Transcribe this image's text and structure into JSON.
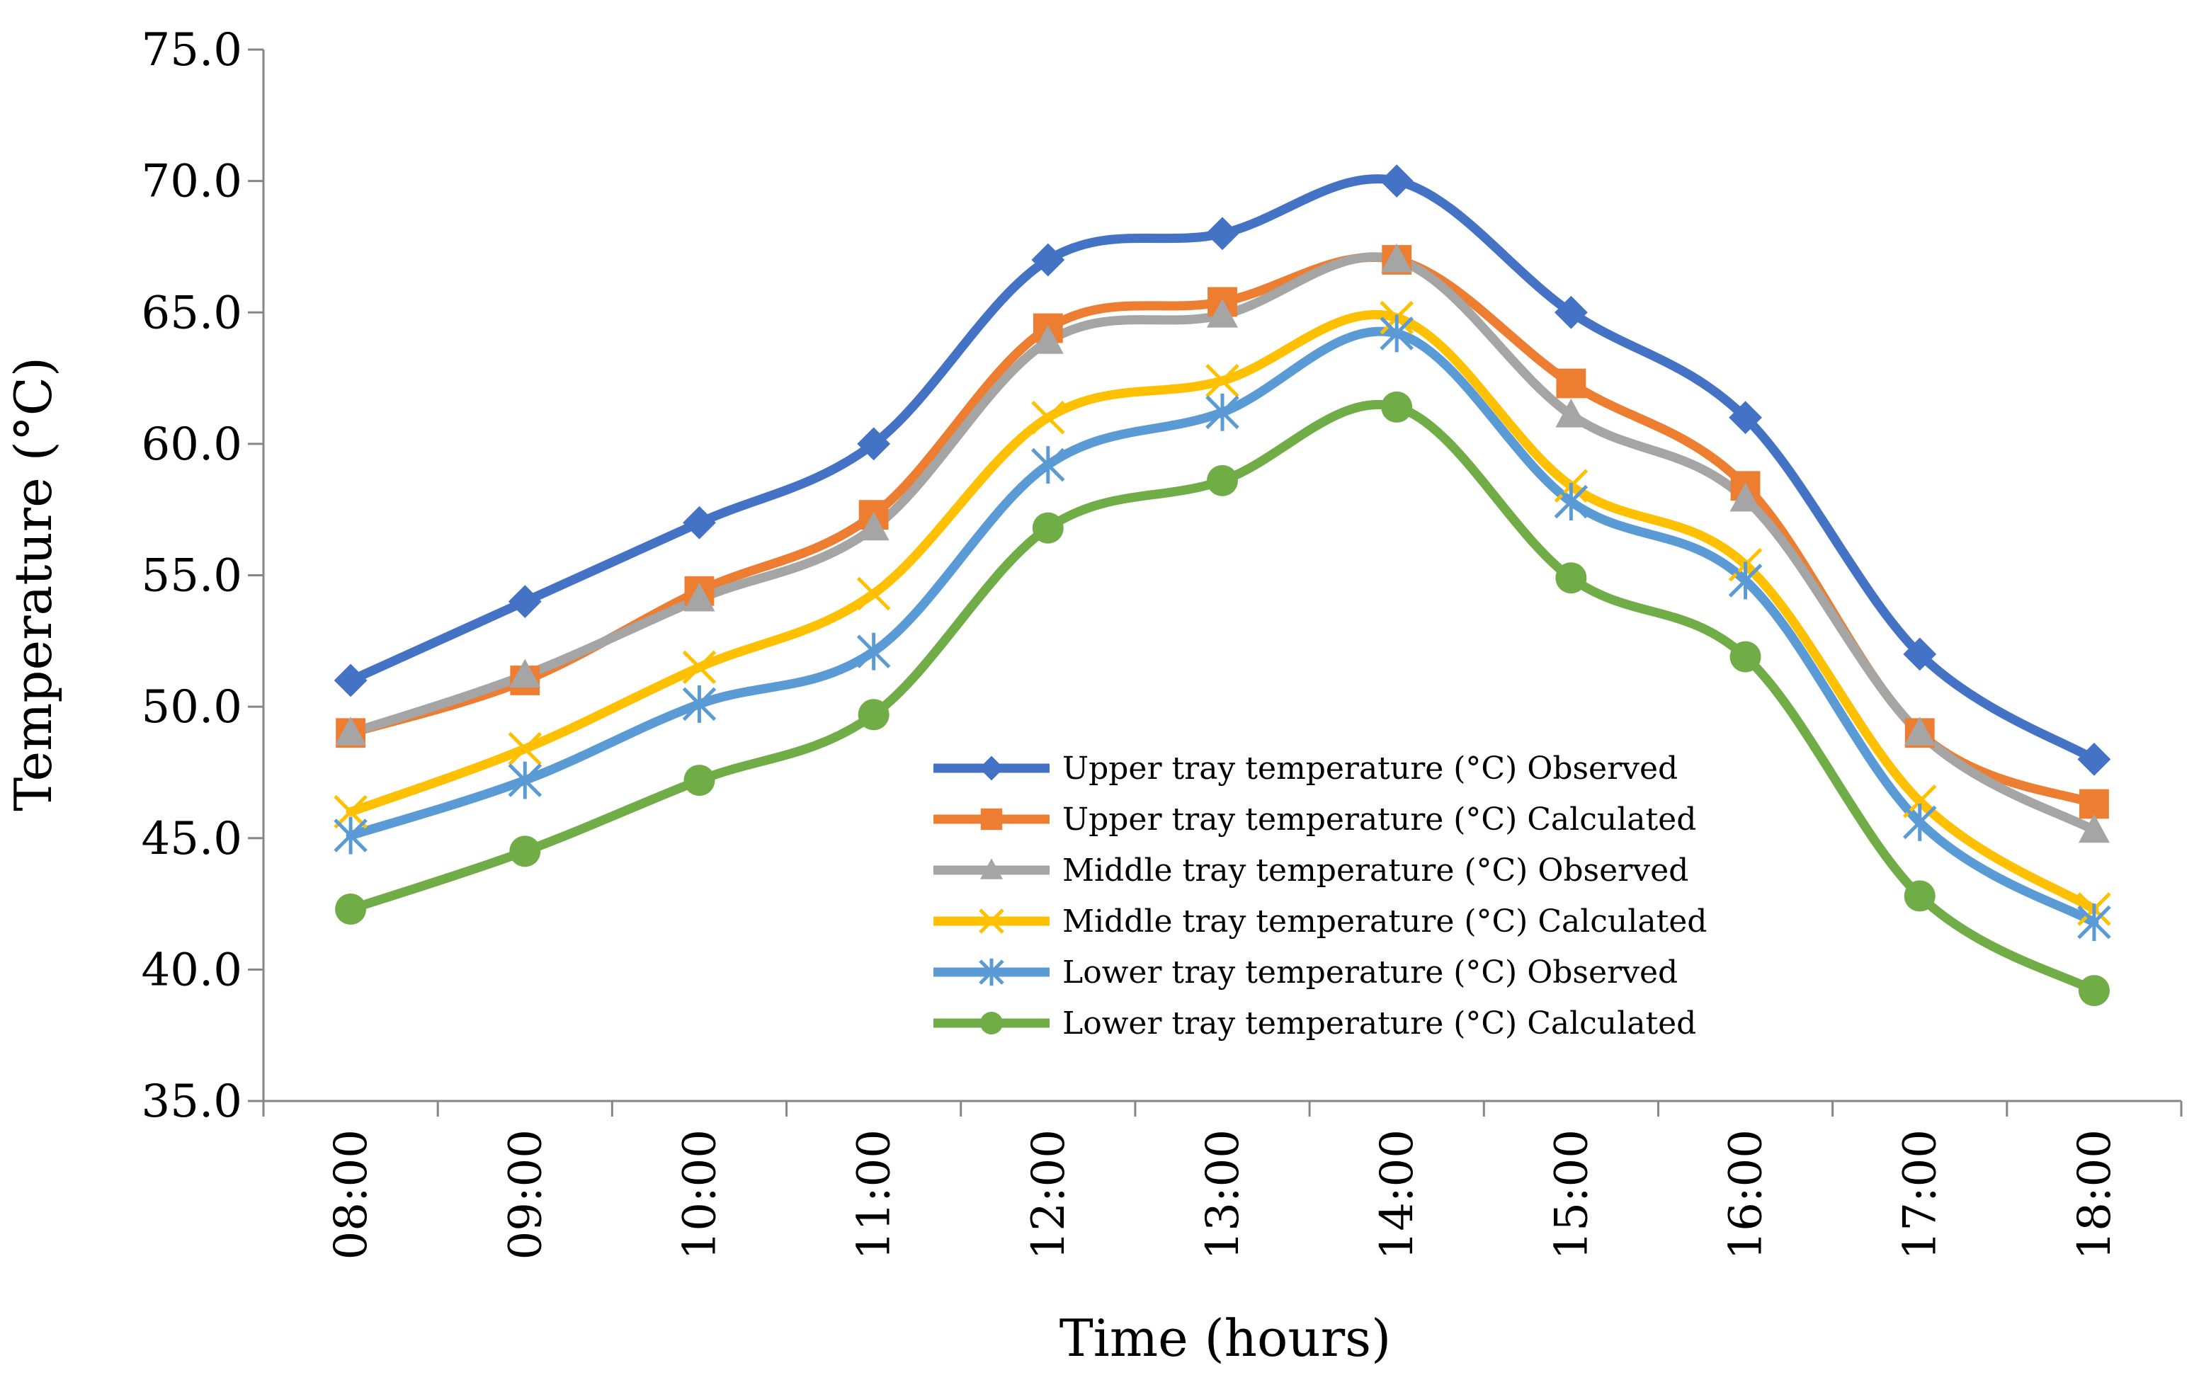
{
  "chart_data": {
    "type": "line",
    "title": "",
    "xlabel": "Time (hours)",
    "ylabel": "Temperature (°C)",
    "ylim": [
      35.0,
      75.0
    ],
    "ytick_step": 5.0,
    "yticks": [
      "35.0",
      "40.0",
      "45.0",
      "50.0",
      "55.0",
      "60.0",
      "65.0",
      "70.0",
      "75.0"
    ],
    "categories": [
      "08:00",
      "09:00",
      "10:00",
      "11:00",
      "12:00",
      "13:00",
      "14:00",
      "15:00",
      "16:00",
      "17:00",
      "18:00"
    ],
    "grid": false,
    "legend_position": "center-right",
    "series": [
      {
        "name": "Upper tray temperature (°C) Observed",
        "color": "#4472C4",
        "marker": "diamond",
        "values": [
          51.0,
          54.0,
          57.0,
          60.0,
          67.0,
          68.0,
          70.0,
          65.0,
          61.0,
          52.0,
          48.0
        ]
      },
      {
        "name": "Upper tray temperature (°C) Calculated",
        "color": "#ED7D31",
        "marker": "square",
        "values": [
          49.0,
          51.0,
          54.4,
          57.3,
          64.4,
          65.4,
          67.0,
          62.3,
          58.4,
          49.0,
          46.3
        ]
      },
      {
        "name": "Middle tray temperature (°C) Observed",
        "color": "#A5A5A5",
        "marker": "triangle",
        "values": [
          49.0,
          51.2,
          54.1,
          56.8,
          63.9,
          64.9,
          67.0,
          61.1,
          57.9,
          49.0,
          45.3
        ]
      },
      {
        "name": "Middle tray temperature (°C) Calculated",
        "color": "#FFC000",
        "marker": "x",
        "values": [
          46.0,
          48.4,
          51.5,
          54.3,
          61.0,
          62.4,
          64.8,
          58.4,
          55.4,
          46.4,
          42.3
        ]
      },
      {
        "name": "Lower tray temperature (°C) Observed",
        "color": "#5B9BD5",
        "marker": "star",
        "values": [
          45.1,
          47.2,
          50.1,
          52.1,
          59.2,
          61.2,
          64.2,
          57.8,
          54.8,
          45.6,
          41.8
        ]
      },
      {
        "name": "Lower tray temperature (°C) Calculated",
        "color": "#70AD47",
        "marker": "circle",
        "values": [
          42.3,
          44.5,
          47.2,
          49.7,
          56.8,
          58.6,
          61.4,
          54.9,
          51.9,
          42.8,
          39.2
        ]
      }
    ]
  }
}
